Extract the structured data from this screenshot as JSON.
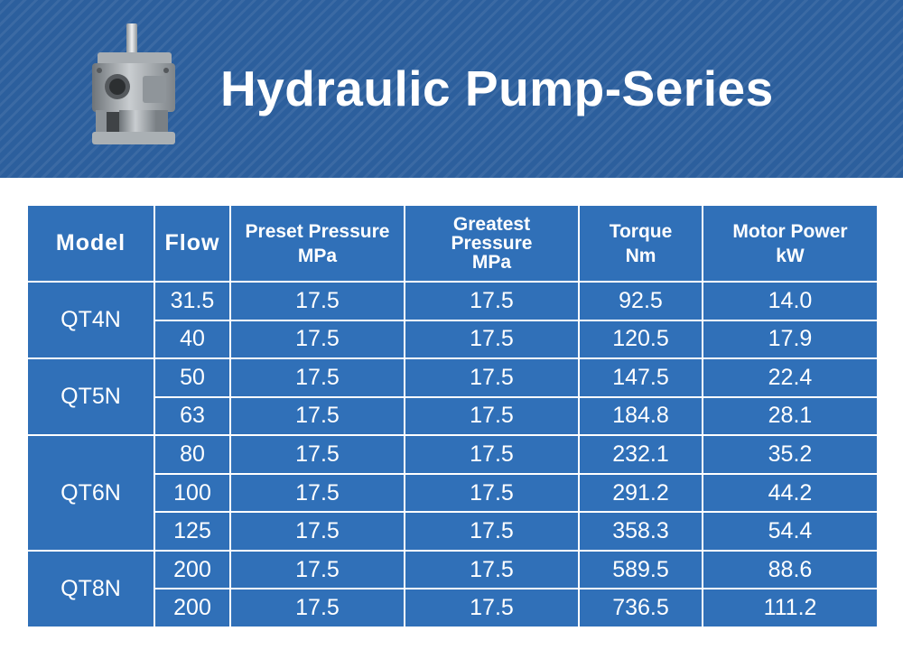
{
  "title": "Hydraulic Pump-Series",
  "colors": {
    "banner": "#2c5f9d",
    "table": "#3070b8",
    "text": "#ffffff"
  },
  "table": {
    "headers": [
      {
        "lines": [
          "Model"
        ]
      },
      {
        "lines": [
          "Flow"
        ]
      },
      {
        "lines": [
          "Preset Pressure",
          "MPa"
        ]
      },
      {
        "lines": [
          "Greatest",
          "Pressure",
          "MPa"
        ]
      },
      {
        "lines": [
          "Torque",
          "Nm"
        ]
      },
      {
        "lines": [
          "Motor Power",
          "kW"
        ]
      }
    ],
    "groups": [
      {
        "model": "QT4N",
        "rows": [
          {
            "flow": "31.5",
            "preset": "17.5",
            "greatest": "17.5",
            "torque": "92.5",
            "power": "14.0"
          },
          {
            "flow": "40",
            "preset": "17.5",
            "greatest": "17.5",
            "torque": "120.5",
            "power": "17.9"
          }
        ]
      },
      {
        "model": "QT5N",
        "rows": [
          {
            "flow": "50",
            "preset": "17.5",
            "greatest": "17.5",
            "torque": "147.5",
            "power": "22.4"
          },
          {
            "flow": "63",
            "preset": "17.5",
            "greatest": "17.5",
            "torque": "184.8",
            "power": "28.1"
          }
        ]
      },
      {
        "model": "QT6N",
        "rows": [
          {
            "flow": "80",
            "preset": "17.5",
            "greatest": "17.5",
            "torque": "232.1",
            "power": "35.2"
          },
          {
            "flow": "100",
            "preset": "17.5",
            "greatest": "17.5",
            "torque": "291.2",
            "power": "44.2"
          },
          {
            "flow": "125",
            "preset": "17.5",
            "greatest": "17.5",
            "torque": "358.3",
            "power": "54.4"
          }
        ]
      },
      {
        "model": "QT8N",
        "rows": [
          {
            "flow": "200",
            "preset": "17.5",
            "greatest": "17.5",
            "torque": "589.5",
            "power": "88.6"
          },
          {
            "flow": "200",
            "preset": "17.5",
            "greatest": "17.5",
            "torque": "736.5",
            "power": "111.2"
          }
        ]
      }
    ]
  }
}
